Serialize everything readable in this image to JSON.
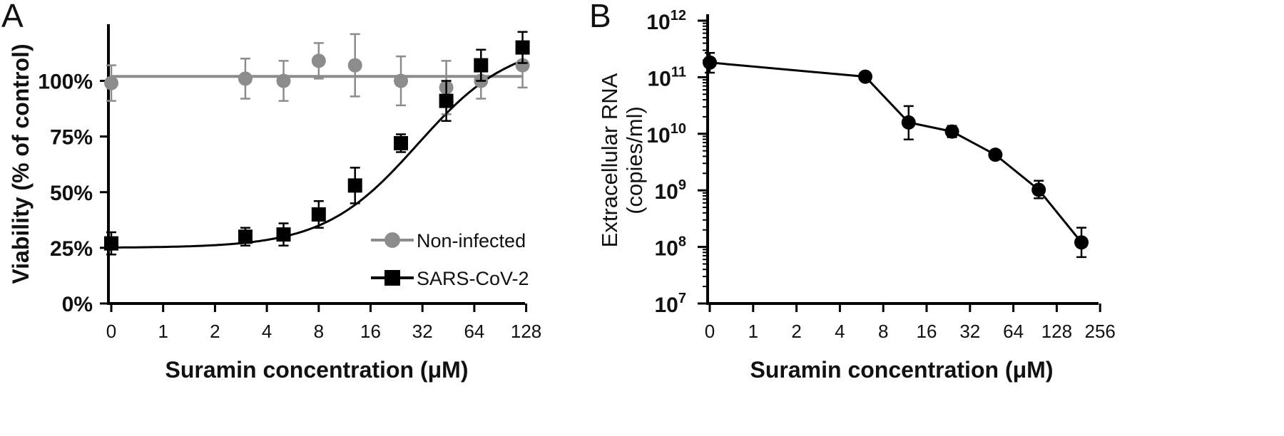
{
  "chart_data": [
    {
      "panel": "A",
      "type": "scatter",
      "title": "",
      "xlabel": "Suramin concentration (μM)",
      "ylabel": "Viability (% of control)",
      "x_scale": "log2 (0 plotted at axis origin)",
      "x_ticks": [
        "0",
        "1",
        "2",
        "4",
        "8",
        "16",
        "32",
        "64",
        "128"
      ],
      "y_ticks": [
        "0%",
        "25%",
        "50%",
        "75%",
        "100%"
      ],
      "ylim": [
        0,
        125
      ],
      "legend_position": "bottom-right",
      "series": [
        {
          "name": "Non-infected",
          "color": "#8c8c8c",
          "marker": "circle",
          "fit": "horizontal line",
          "fit_value": 102,
          "points": [
            {
              "x": 0,
              "y": 99,
              "err": 8
            },
            {
              "x": 3,
              "y": 101,
              "err": 9
            },
            {
              "x": 5,
              "y": 100,
              "err": 9
            },
            {
              "x": 8,
              "y": 109,
              "err": 8
            },
            {
              "x": 13,
              "y": 107,
              "err": 14
            },
            {
              "x": 24,
              "y": 100,
              "err": 11
            },
            {
              "x": 44,
              "y": 97,
              "err": 12
            },
            {
              "x": 70,
              "y": 100,
              "err": 8
            },
            {
              "x": 122,
              "y": 107,
              "err": 10
            }
          ]
        },
        {
          "name": "SARS-CoV-2",
          "color": "#000000",
          "marker": "square",
          "fit": "sigmoidal dose-response",
          "fit_params": {
            "bottom": 25,
            "top": 118,
            "ec50": 30,
            "hill": 1.6
          },
          "points": [
            {
              "x": 0,
              "y": 27,
              "err": 5
            },
            {
              "x": 3,
              "y": 30,
              "err": 4
            },
            {
              "x": 5,
              "y": 31,
              "err": 5
            },
            {
              "x": 8,
              "y": 40,
              "err": 6
            },
            {
              "x": 13,
              "y": 53,
              "err": 8
            },
            {
              "x": 24,
              "y": 72,
              "err": 4
            },
            {
              "x": 44,
              "y": 91,
              "err": 9
            },
            {
              "x": 70,
              "y": 107,
              "err": 7
            },
            {
              "x": 122,
              "y": 115,
              "err": 7
            }
          ]
        }
      ]
    },
    {
      "panel": "B",
      "type": "line",
      "title": "",
      "xlabel": "Suramin concentration (μM)",
      "ylabel": "Extracellular RNA",
      "ylabel_line2": "(copies/ml)",
      "x_scale": "log2 (0 plotted at axis origin)",
      "x_ticks": [
        "0",
        "1",
        "2",
        "4",
        "8",
        "16",
        "32",
        "64",
        "128",
        "256"
      ],
      "y_scale": "log10",
      "y_ticks": [
        {
          "base": "10",
          "exp": "7"
        },
        {
          "base": "10",
          "exp": "8"
        },
        {
          "base": "10",
          "exp": "9"
        },
        {
          "base": "10",
          "exp": "10"
        },
        {
          "base": "10",
          "exp": "11"
        },
        {
          "base": "10",
          "exp": "12"
        }
      ],
      "ylim_log10": [
        7,
        12
      ],
      "series": [
        {
          "name": "Extracellular RNA",
          "color": "#000000",
          "marker": "circle",
          "points": [
            {
              "x": 0,
              "y_log10": 11.26,
              "err_hi": 11.43,
              "err_lo": 11.08
            },
            {
              "x": 6,
              "y_log10": 11.01
            },
            {
              "x": 12,
              "y_log10": 10.2,
              "err_hi": 10.49,
              "err_lo": 9.9
            },
            {
              "x": 24,
              "y_log10": 10.04,
              "err_hi": 10.14,
              "err_lo": 9.94
            },
            {
              "x": 48,
              "y_log10": 9.63
            },
            {
              "x": 96,
              "y_log10": 9.01,
              "err_hi": 9.17,
              "err_lo": 8.86
            },
            {
              "x": 190,
              "y_log10": 8.08,
              "err_hi": 8.34,
              "err_lo": 7.82
            }
          ]
        }
      ]
    }
  ]
}
